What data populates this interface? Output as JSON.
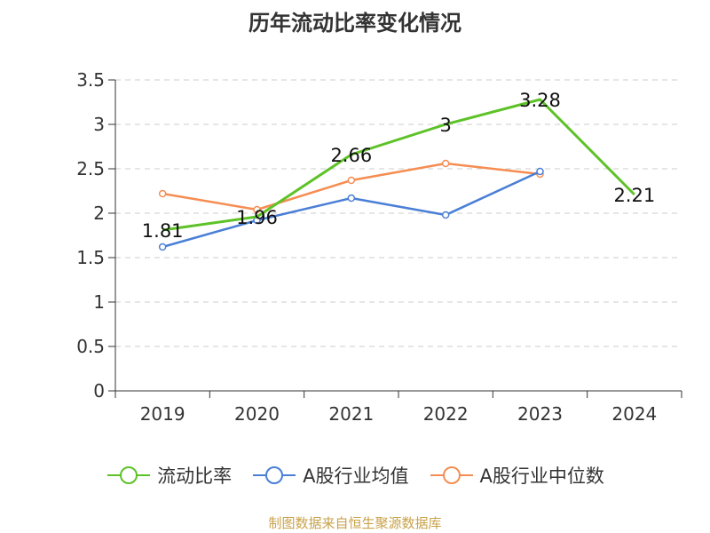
{
  "chart_data": {
    "type": "line",
    "title": "历年流动比率变化情况",
    "categories": [
      "2019",
      "2020",
      "2021",
      "2022",
      "2023",
      "2024"
    ],
    "ylim": [
      0,
      3.5
    ],
    "yticks": [
      "0",
      "0.5",
      "1",
      "1.5",
      "2",
      "2.5",
      "3",
      "3.5"
    ],
    "grid": true,
    "legend_position": "bottom",
    "series": [
      {
        "name": "流动比率",
        "color": "#5dc227",
        "values": [
          1.81,
          1.96,
          2.66,
          3,
          3.28,
          2.21
        ],
        "labels": [
          "1.81",
          "1.96",
          "2.66",
          "3",
          "3.28",
          "2.21"
        ]
      },
      {
        "name": "A股行业均值",
        "color": "#4a7fd6",
        "values": [
          1.62,
          1.92,
          2.17,
          1.98,
          2.47,
          null
        ]
      },
      {
        "name": "A股行业中位数",
        "color": "#f58d52",
        "values": [
          2.22,
          2.04,
          2.37,
          2.56,
          2.44,
          null
        ]
      }
    ]
  },
  "source": "制图数据来自恒生聚源数据库"
}
